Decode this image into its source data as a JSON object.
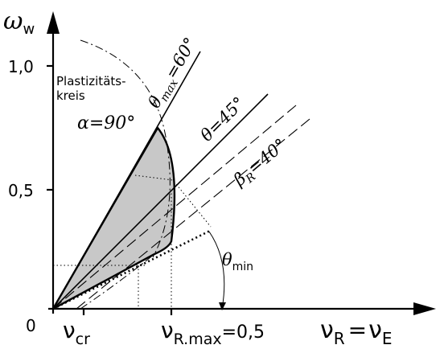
{
  "axes": {
    "y_label_base": "ω",
    "y_label_sub": "w",
    "y_ticks": [
      "1,0",
      "0,5",
      "0"
    ],
    "x_label_a_base": "ν",
    "x_label_a_sub": "R",
    "x_label_eq": "=",
    "x_label_b_base": "ν",
    "x_label_b_sub": "E",
    "x_nu_cr_base": "ν",
    "x_nu_cr_sub": "cr",
    "x_nu_rmax_base": "ν",
    "x_nu_rmax_sub": "R.max",
    "x_nu_rmax_val": "=0,5"
  },
  "annotations": {
    "plasticity_line1": "Plastizitäts-",
    "plasticity_line2": "kreis",
    "alpha": "α=90°",
    "theta_max_base": "θ",
    "theta_max_sub": "max",
    "theta_max_val": "=60°",
    "theta45": "θ=45°",
    "beta_base": "β",
    "beta_sub": "R",
    "beta_val": "=40°",
    "theta_min_base": "θ",
    "theta_min_sub": "min"
  }
}
